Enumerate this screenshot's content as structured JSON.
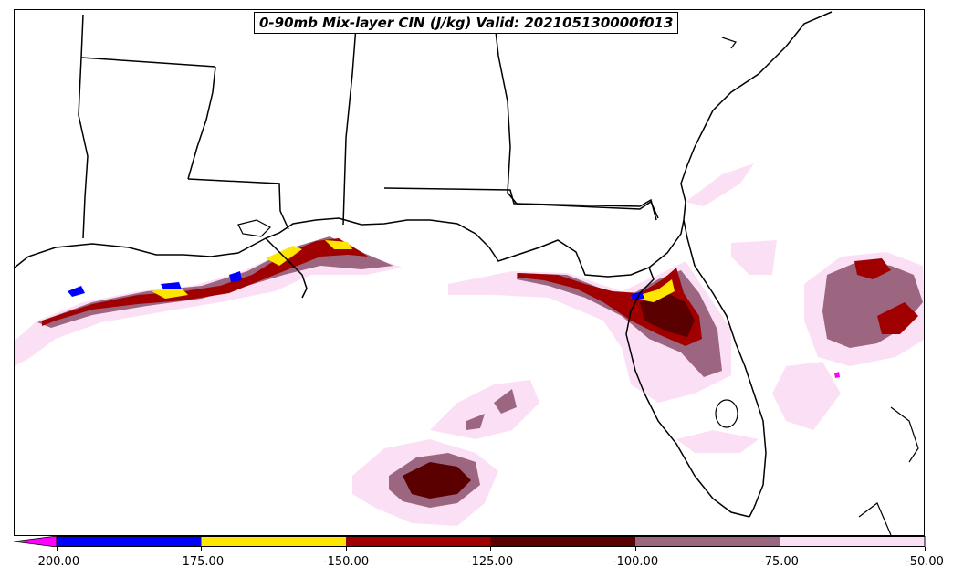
{
  "title": "0-90mb Mix-layer CIN (J/kg) Valid: 202105130000f013",
  "colorbar": {
    "ticks": [
      "-200.00",
      "-175.00",
      "-150.00",
      "-125.00",
      "-100.00",
      "-75.00",
      "-50.00"
    ],
    "bins": [
      {
        "from": -200,
        "to": -175,
        "color": "#0000ff"
      },
      {
        "from": -175,
        "to": -150,
        "color": "#ffe600"
      },
      {
        "from": -150,
        "to": -125,
        "color": "#a00000"
      },
      {
        "from": -125,
        "to": -100,
        "color": "#5a0000"
      },
      {
        "from": -100,
        "to": -75,
        "color": "#9c6680"
      },
      {
        "from": -75,
        "to": -50,
        "color": "#fbe0f5"
      }
    ],
    "under_color": "#ff00ff"
  },
  "colors": {
    "light_pink": "#fbe0f5",
    "mauve": "#9c6680",
    "dark_maroon": "#5a0000",
    "red": "#a00000",
    "yellow": "#ffe600",
    "blue": "#0000ff",
    "magenta": "#ff00ff",
    "coastline": "#000000"
  }
}
